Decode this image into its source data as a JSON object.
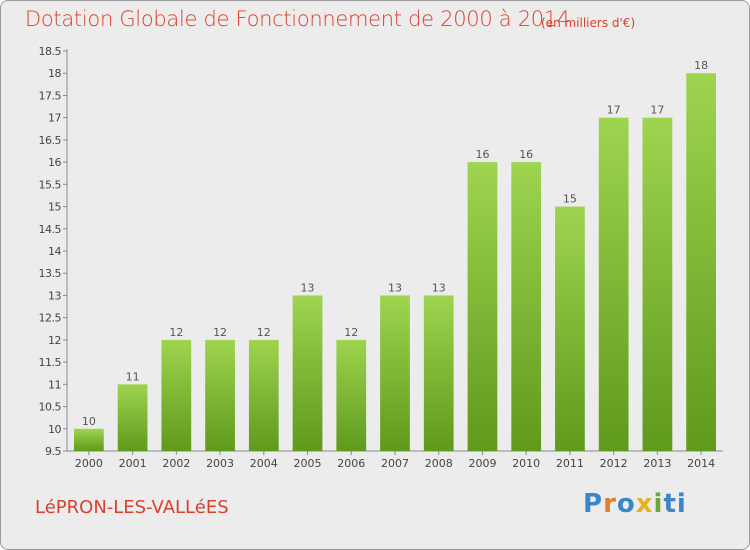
{
  "title": "Dotation Globale de Fonctionnement de 2000 à 2014",
  "subtitle": "(en milliers d'€)",
  "place": "LéPRON-LES-VALLéES",
  "logo": {
    "text": "Proxiti",
    "letters": [
      "P",
      "r",
      "o",
      "x",
      "i",
      "ti"
    ]
  },
  "colors": {
    "title": "#d8412d",
    "bar_top": "#9ed44f",
    "bar_bottom": "#5f9a1c",
    "background": "#ececec"
  },
  "chart_data": {
    "type": "bar",
    "categories": [
      "2000",
      "2001",
      "2002",
      "2003",
      "2004",
      "2005",
      "2006",
      "2007",
      "2008",
      "2009",
      "2010",
      "2011",
      "2012",
      "2013",
      "2014"
    ],
    "values": [
      10,
      11,
      12,
      12,
      12,
      13,
      12,
      13,
      13,
      16,
      16,
      15,
      17,
      17,
      18
    ],
    "data_labels": [
      "10",
      "11",
      "12",
      "12",
      "12",
      "13",
      "12",
      "13",
      "13",
      "16",
      "16",
      "15",
      "17",
      "17",
      "18"
    ],
    "ylim": [
      9.5,
      18.5
    ],
    "yticks": [
      9.5,
      10,
      10.5,
      11,
      11.5,
      12,
      12.5,
      13,
      13.5,
      14,
      14.5,
      15,
      15.5,
      16,
      16.5,
      17,
      17.5,
      18,
      18.5
    ],
    "ytick_labels": [
      "9.5",
      "10",
      "10.5",
      "11",
      "11.5",
      "12",
      "12.5",
      "13",
      "13.5",
      "14",
      "14.5",
      "15",
      "15.5",
      "16",
      "16.5",
      "17",
      "17.5",
      "18",
      "18.5"
    ],
    "grid": false,
    "legend": "none",
    "xlabel": "",
    "ylabel": ""
  }
}
